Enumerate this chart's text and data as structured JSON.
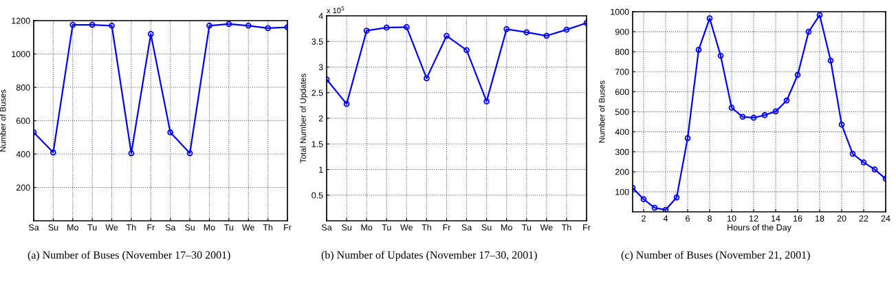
{
  "chart_data": [
    {
      "type": "line",
      "title": "(a) Number of Buses (November 17–30 2001)",
      "ylabel": "Number of Buses",
      "categories": [
        "Sa",
        "Su",
        "Mo",
        "Tu",
        "We",
        "Th",
        "Fr",
        "Sa",
        "Su",
        "Mo",
        "Tu",
        "We",
        "Th",
        "Fr"
      ],
      "series": [
        {
          "color": "#0000ff",
          "values": [
            530,
            410,
            1175,
            1175,
            1170,
            405,
            1120,
            530,
            405,
            1170,
            1180,
            1170,
            1155,
            1160
          ]
        }
      ],
      "ylim": [
        0,
        1200
      ],
      "yticks": [
        200,
        400,
        600,
        800,
        1000,
        1200
      ],
      "grid": true,
      "marker": "circle",
      "line_style": "solid"
    },
    {
      "type": "line",
      "title": "(b) Number of Updates (November 17–30, 2001)",
      "ylabel": "Total Number of Updates",
      "categories": [
        "Sa",
        "Su",
        "Mo",
        "Tu",
        "We",
        "Th",
        "Fr",
        "Sa",
        "Su",
        "Mo",
        "Tu",
        "We",
        "Th",
        "Fr"
      ],
      "series": [
        {
          "color": "#0000ff",
          "values": [
            2.76,
            2.28,
            3.71,
            3.77,
            3.78,
            2.78,
            3.61,
            3.33,
            2.33,
            3.74,
            3.68,
            3.61,
            3.73,
            3.86
          ]
        }
      ],
      "ylim": [
        0,
        4
      ],
      "yticks": [
        0.5,
        1,
        1.5,
        2,
        2.5,
        3,
        3.5,
        4
      ],
      "annotations": [
        "x 10$^{5}$"
      ],
      "grid": true,
      "marker": "circle",
      "line_style": "solid"
    },
    {
      "type": "line",
      "title": "(c) Number of Buses (November 21, 2001)",
      "xlabel": "Hours of the Day",
      "ylabel": "Number of Buses",
      "x": [
        1,
        2,
        3,
        4,
        5,
        6,
        7,
        8,
        9,
        10,
        11,
        12,
        13,
        14,
        15,
        16,
        17,
        18,
        19,
        20,
        21,
        22,
        23,
        24
      ],
      "series": [
        {
          "color": "#0000ff",
          "values": [
            120,
            63,
            20,
            10,
            72,
            368,
            810,
            967,
            780,
            520,
            475,
            470,
            483,
            502,
            556,
            684,
            900,
            983,
            756,
            436,
            290,
            247,
            212,
            165
          ]
        }
      ],
      "xlim": [
        1,
        24
      ],
      "xticks": [
        2,
        4,
        6,
        8,
        10,
        12,
        14,
        16,
        18,
        20,
        22,
        24
      ],
      "ylim": [
        0,
        1000
      ],
      "yticks": [
        100,
        200,
        300,
        400,
        500,
        600,
        700,
        800,
        900,
        1000
      ],
      "grid": true,
      "marker": "circle",
      "line_style": "solid"
    }
  ]
}
